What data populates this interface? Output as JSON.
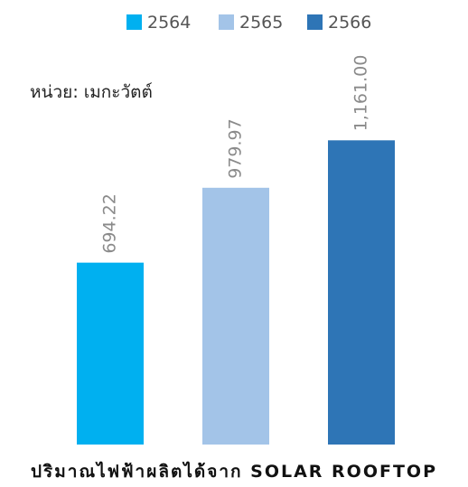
{
  "chart_data": {
    "type": "bar",
    "title": "ปริมาณไฟฟ้าผลิตได้จาก SOLAR ROOFTOP",
    "unit_label": "หน่วย: เมกะวัตต์",
    "categories": [
      "2564",
      "2565",
      "2566"
    ],
    "values": [
      694.22,
      979.97,
      1161.0
    ],
    "value_labels": [
      "694.22",
      "979.97",
      "1,161.00"
    ],
    "colors": [
      "#00b0f0",
      "#a3c4e8",
      "#2e75b6"
    ],
    "legend": {
      "placement": "top-center",
      "entries": [
        "2564",
        "2565",
        "2566"
      ]
    },
    "ylim": [
      0,
      1300
    ],
    "grid": false,
    "xlabel": "",
    "ylabel": ""
  }
}
